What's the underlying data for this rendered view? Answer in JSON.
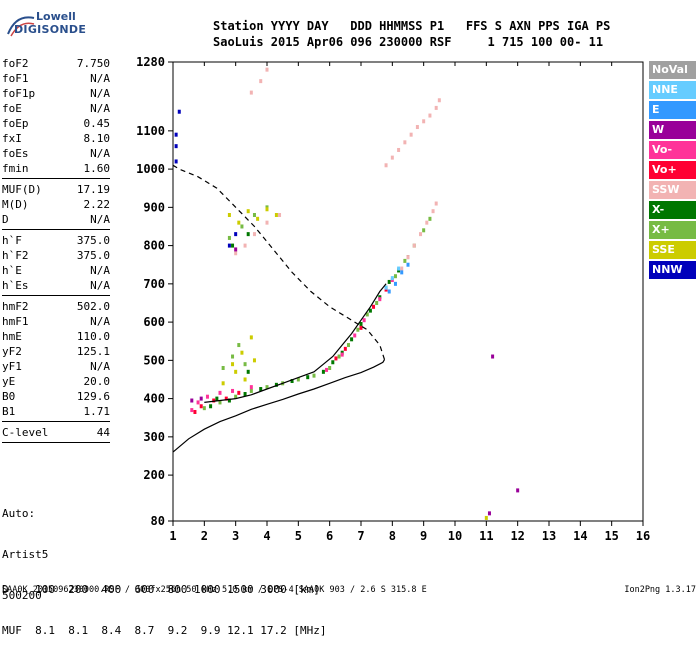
{
  "logo": {
    "line1": "Lowell",
    "line2": "DIGISONDE"
  },
  "header": {
    "row1": "Station YYYY DAY   DDD HHMMSS P1   FFS S AXN PPS IGA PS",
    "row2": "SaoLuis 2015 Apr06 096 230000 RSF     1 715 100 00- 11"
  },
  "params": [
    {
      "label": "foF2",
      "value": "7.750"
    },
    {
      "label": "foF1",
      "value": "N/A"
    },
    {
      "label": "foF1p",
      "value": "N/A"
    },
    {
      "label": "foE",
      "value": "N/A"
    },
    {
      "label": "foEp",
      "value": "0.45"
    },
    {
      "label": "fxI",
      "value": "8.10"
    },
    {
      "label": "foEs",
      "value": "N/A"
    },
    {
      "label": "fmin",
      "value": "1.60"
    },
    {
      "label": "MUF(D)",
      "value": "17.19",
      "sep": true
    },
    {
      "label": "M(D)",
      "value": "2.22"
    },
    {
      "label": "D",
      "value": "N/A"
    },
    {
      "label": "h`F",
      "value": "375.0",
      "sep": true
    },
    {
      "label": "h`F2",
      "value": "375.0"
    },
    {
      "label": "h`E",
      "value": "N/A"
    },
    {
      "label": "h`Es",
      "value": "N/A"
    },
    {
      "label": "hmF2",
      "value": "502.0",
      "sep": true
    },
    {
      "label": "hmF1",
      "value": "N/A"
    },
    {
      "label": "hmE",
      "value": "110.0"
    },
    {
      "label": "yF2",
      "value": "125.1"
    },
    {
      "label": "yF1",
      "value": "N/A"
    },
    {
      "label": "yE",
      "value": "20.0"
    },
    {
      "label": "B0",
      "value": "129.6"
    },
    {
      "label": "B1",
      "value": "1.71"
    },
    {
      "label": "C-level",
      "value": "44",
      "sep": true
    }
  ],
  "auto": {
    "line1": "Auto:",
    "line2": "Artist5",
    "line3": "500200"
  },
  "bottom_table": {
    "row1": "D    100  200  400  600  800 1000 1500 3000 [km]",
    "row2": "MUF  8.1  8.1  8.4  8.7  9.2  9.9 12.1 17.2 [MHz]"
  },
  "footer": {
    "left": "SAA0K_2015096230000.RSF / 300fx256h 50 kHz 5.0 km / DPS-4 SAA0K 903 / 2.6 S 315.8 E",
    "right": "Ion2Png 1.3.17"
  },
  "legend": [
    {
      "label": "NoVal",
      "bg": "#a0a0a0",
      "fg": "#ffffff"
    },
    {
      "label": "NNE",
      "bg": "#66ccff",
      "fg": "#ffffff"
    },
    {
      "label": "E",
      "bg": "#3399ff",
      "fg": "#ffffff"
    },
    {
      "label": "W",
      "bg": "#990099",
      "fg": "#ffffff"
    },
    {
      "label": "Vo-",
      "bg": "#ff3399",
      "fg": "#ffffff"
    },
    {
      "label": "Vo+",
      "bg": "#ff0033",
      "fg": "#ffffff"
    },
    {
      "label": "SSW",
      "bg": "#f2b3b3",
      "fg": "#ffffff"
    },
    {
      "label": "X-",
      "bg": "#007700",
      "fg": "#ffffff"
    },
    {
      "label": "X+",
      "bg": "#77bb44",
      "fg": "#ffffff"
    },
    {
      "label": "SSE",
      "bg": "#cccc00",
      "fg": "#ffffff"
    },
    {
      "label": "NNW",
      "bg": "#0000bb",
      "fg": "#ffffff"
    }
  ],
  "chart_data": {
    "type": "scatter",
    "xlim": [
      1,
      16
    ],
    "ylim": [
      80,
      1280
    ],
    "x_ticks": [
      1,
      2,
      3,
      4,
      5,
      6,
      7,
      8,
      9,
      10,
      11,
      12,
      13,
      14,
      15,
      16
    ],
    "y_ticks": [
      80,
      200,
      300,
      400,
      500,
      600,
      700,
      800,
      900,
      1000,
      1100,
      1280
    ],
    "grid": false,
    "series": [
      {
        "name": "X+",
        "color": "#77bb44",
        "points": [
          [
            2.0,
            375
          ],
          [
            2.5,
            390
          ],
          [
            3.0,
            405
          ],
          [
            3.5,
            420
          ],
          [
            4.0,
            430
          ],
          [
            4.5,
            440
          ],
          [
            5.0,
            450
          ],
          [
            5.5,
            460
          ],
          [
            6.0,
            480
          ],
          [
            6.3,
            510
          ],
          [
            6.6,
            540
          ],
          [
            6.9,
            580
          ],
          [
            7.2,
            620
          ],
          [
            7.5,
            650
          ],
          [
            7.8,
            690
          ],
          [
            8.1,
            720
          ],
          [
            8.4,
            760
          ],
          [
            8.7,
            800
          ],
          [
            9.0,
            840
          ],
          [
            9.2,
            870
          ],
          [
            2.6,
            480
          ],
          [
            2.9,
            510
          ],
          [
            3.1,
            540
          ],
          [
            3.3,
            490
          ],
          [
            2.8,
            820
          ],
          [
            3.2,
            850
          ],
          [
            3.6,
            880
          ],
          [
            4.0,
            900
          ]
        ]
      },
      {
        "name": "X-",
        "color": "#007700",
        "points": [
          [
            2.2,
            380
          ],
          [
            2.8,
            395
          ],
          [
            3.3,
            412
          ],
          [
            3.8,
            425
          ],
          [
            4.3,
            436
          ],
          [
            4.8,
            446
          ],
          [
            5.3,
            456
          ],
          [
            5.8,
            470
          ],
          [
            6.1,
            495
          ],
          [
            6.4,
            520
          ],
          [
            6.7,
            555
          ],
          [
            7.0,
            595
          ],
          [
            7.3,
            630
          ],
          [
            7.6,
            665
          ],
          [
            7.9,
            705
          ],
          [
            8.2,
            735
          ],
          [
            8.5,
            770
          ],
          [
            2.4,
            400
          ],
          [
            3.4,
            470
          ],
          [
            2.9,
            800
          ],
          [
            3.4,
            830
          ]
        ]
      },
      {
        "name": "Vo+",
        "color": "#ff0033",
        "points": [
          [
            1.7,
            365
          ],
          [
            1.9,
            380
          ],
          [
            2.3,
            395
          ],
          [
            2.7,
            400
          ],
          [
            3.1,
            415
          ],
          [
            6.2,
            505
          ],
          [
            6.5,
            530
          ],
          [
            7.0,
            585
          ],
          [
            7.4,
            640
          ],
          [
            7.8,
            685
          ]
        ]
      },
      {
        "name": "Vo-",
        "color": "#ff3399",
        "points": [
          [
            1.6,
            370
          ],
          [
            1.8,
            390
          ],
          [
            2.1,
            405
          ],
          [
            2.5,
            415
          ],
          [
            2.9,
            420
          ],
          [
            3.5,
            430
          ],
          [
            5.9,
            475
          ],
          [
            6.4,
            515
          ],
          [
            6.8,
            565
          ],
          [
            7.1,
            605
          ],
          [
            7.6,
            660
          ],
          [
            8.0,
            710
          ]
        ]
      },
      {
        "name": "SSW",
        "color": "#f2b3b3",
        "points": [
          [
            3.0,
            780
          ],
          [
            3.3,
            800
          ],
          [
            3.6,
            830
          ],
          [
            4.0,
            860
          ],
          [
            4.4,
            880
          ],
          [
            8.3,
            740
          ],
          [
            8.5,
            770
          ],
          [
            8.7,
            800
          ],
          [
            8.9,
            830
          ],
          [
            9.1,
            860
          ],
          [
            9.3,
            890
          ],
          [
            9.4,
            910
          ],
          [
            7.8,
            1010
          ],
          [
            8.0,
            1030
          ],
          [
            8.2,
            1050
          ],
          [
            8.4,
            1070
          ],
          [
            8.6,
            1090
          ],
          [
            8.8,
            1110
          ],
          [
            9.0,
            1125
          ],
          [
            9.2,
            1140
          ],
          [
            9.4,
            1160
          ],
          [
            9.5,
            1180
          ],
          [
            3.5,
            1200
          ],
          [
            3.8,
            1230
          ],
          [
            4.0,
            1260
          ]
        ]
      },
      {
        "name": "SSE",
        "color": "#cccc00",
        "points": [
          [
            2.8,
            880
          ],
          [
            3.1,
            860
          ],
          [
            3.4,
            890
          ],
          [
            3.7,
            870
          ],
          [
            4.0,
            895
          ],
          [
            4.3,
            880
          ],
          [
            2.9,
            490
          ],
          [
            3.2,
            520
          ],
          [
            3.5,
            560
          ],
          [
            3.0,
            470
          ],
          [
            3.3,
            450
          ],
          [
            3.6,
            500
          ],
          [
            2.6,
            440
          ],
          [
            11.0,
            88
          ]
        ]
      },
      {
        "name": "E",
        "color": "#3399ff",
        "points": [
          [
            8.1,
            700
          ],
          [
            8.3,
            730
          ],
          [
            8.5,
            750
          ],
          [
            7.9,
            680
          ]
        ]
      },
      {
        "name": "NNE",
        "color": "#66ccff",
        "points": [
          [
            7.8,
            690
          ],
          [
            8.0,
            715
          ],
          [
            8.2,
            740
          ]
        ]
      },
      {
        "name": "W",
        "color": "#990099",
        "points": [
          [
            1.6,
            395
          ],
          [
            1.9,
            400
          ],
          [
            3.0,
            790
          ],
          [
            11.2,
            510
          ],
          [
            12.0,
            160
          ],
          [
            11.1,
            100
          ]
        ]
      },
      {
        "name": "NNW",
        "color": "#0000bb",
        "points": [
          [
            1.1,
            1060
          ],
          [
            1.1,
            1090
          ],
          [
            1.2,
            1150
          ],
          [
            1.1,
            1020
          ],
          [
            2.8,
            800
          ],
          [
            3.0,
            830
          ]
        ]
      }
    ],
    "curves": [
      {
        "name": "trace",
        "style": "solid",
        "points": [
          [
            2.0,
            390
          ],
          [
            2.5,
            395
          ],
          [
            3.0,
            400
          ],
          [
            3.5,
            410
          ],
          [
            4.0,
            425
          ],
          [
            4.5,
            440
          ],
          [
            5.0,
            455
          ],
          [
            5.5,
            470
          ],
          [
            5.8,
            490
          ],
          [
            6.1,
            510
          ],
          [
            6.4,
            540
          ],
          [
            6.7,
            570
          ],
          [
            7.0,
            605
          ],
          [
            7.3,
            640
          ],
          [
            7.6,
            680
          ],
          [
            7.8,
            700
          ]
        ]
      },
      {
        "name": "profile",
        "style": "solid",
        "points": [
          [
            1.0,
            260
          ],
          [
            1.5,
            295
          ],
          [
            2.0,
            320
          ],
          [
            2.5,
            340
          ],
          [
            3.0,
            355
          ],
          [
            3.5,
            372
          ],
          [
            4.0,
            385
          ],
          [
            4.5,
            398
          ],
          [
            5.0,
            412
          ],
          [
            5.5,
            425
          ],
          [
            6.0,
            440
          ],
          [
            6.5,
            455
          ],
          [
            7.0,
            468
          ],
          [
            7.4,
            482
          ],
          [
            7.7,
            495
          ],
          [
            7.75,
            502
          ]
        ]
      },
      {
        "name": "topside",
        "style": "dashed",
        "points": [
          [
            7.75,
            502
          ],
          [
            7.6,
            540
          ],
          [
            7.2,
            580
          ],
          [
            6.6,
            610
          ],
          [
            6.0,
            640
          ],
          [
            5.4,
            680
          ],
          [
            4.8,
            730
          ],
          [
            4.2,
            790
          ],
          [
            3.6,
            850
          ],
          [
            3.0,
            900
          ],
          [
            2.4,
            950
          ],
          [
            1.8,
            980
          ],
          [
            1.2,
            1000
          ],
          [
            1.0,
            1010
          ]
        ]
      }
    ]
  }
}
